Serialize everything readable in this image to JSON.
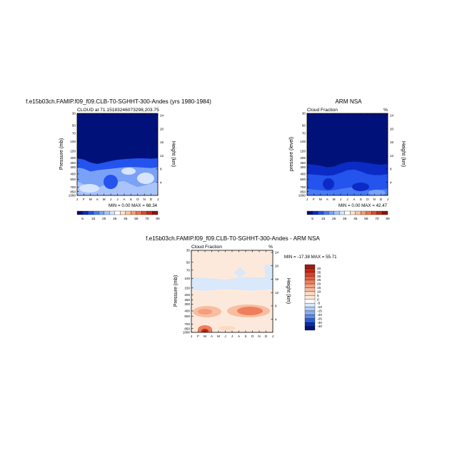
{
  "figure": {
    "title_left": "f.e15b03ch.FAMIP.f09_f09.CLB-T0-SGHHT-300-Andes (yrs 1980-1984)",
    "title_right": "ARM NSA",
    "title_diff": "f.e15b03ch.FAMIP.f09_f09.CLB-T0-SGHHT-300-Andes - ARM NSA"
  },
  "chart_data": [
    {
      "id": "model",
      "type": "heatmap",
      "subtitle_left": "CLOUD at 71.15183246073298,203.75",
      "subtitle_right": "",
      "percent_mark": "",
      "ylabel": "Pressure (mb)",
      "ylabel_right": "Height (km)",
      "stats": "MIN =   0.00 MAX =   68.34",
      "x_ticks": [
        "J",
        "F",
        "M",
        "A",
        "M",
        "J",
        "J",
        "A",
        "S",
        "O",
        "N",
        "D",
        "J"
      ],
      "y_ticks": [
        "30",
        "50",
        "70",
        "100",
        "150",
        "200",
        "250",
        "300",
        "400",
        "500",
        "700",
        "850",
        "1000"
      ],
      "y_ticks_right": [
        "24",
        "20",
        "16",
        "12",
        "8",
        "4"
      ],
      "ylim": [
        30,
        1000
      ],
      "colorbar": {
        "orientation": "horizontal",
        "labels": [
          "5",
          "15",
          "25",
          "35",
          "45",
          "55",
          "70",
          "90"
        ],
        "colors": [
          "#00127a",
          "#0b2bc4",
          "#2453ee",
          "#4a7bf5",
          "#7aa1f8",
          "#a8c4fb",
          "#d6e4fd",
          "#ffffff",
          "#fde4cf",
          "#fbc5a0",
          "#f79e73",
          "#ef744a",
          "#e04b2b",
          "#c22a16",
          "#95110a"
        ]
      },
      "series": [
        {
          "months": [
            1,
            2,
            3,
            4,
            5,
            6,
            7,
            8,
            9,
            10,
            11,
            12,
            13
          ],
          "pressure_top": [
            205,
            215,
            245,
            260,
            245,
            230,
            218,
            212,
            208,
            205,
            206,
            208,
            205
          ]
        },
        {
          "months": [
            1,
            2,
            3,
            4,
            5,
            6,
            7,
            8,
            9,
            10,
            11,
            12,
            13
          ],
          "pressure_top": [
            300,
            320,
            360,
            340,
            330,
            320,
            310,
            300,
            295,
            300,
            305,
            310,
            300
          ]
        },
        {
          "months": [
            1,
            2,
            3,
            4,
            5,
            6,
            7,
            8,
            9,
            10,
            11,
            12,
            13
          ],
          "pressure_top": [
            550,
            620,
            700,
            720,
            650,
            600,
            560,
            540,
            620,
            700,
            650,
            600,
            550
          ]
        }
      ]
    },
    {
      "id": "obs",
      "type": "heatmap",
      "subtitle_left": "Cloud Fraction",
      "subtitle_right": "",
      "percent_mark": "%",
      "ylabel": "pressure (level)",
      "ylabel_right": "Height (km)",
      "stats": "MIN =   0.00 MAX =   42.47",
      "x_ticks": [
        "J",
        "F",
        "M",
        "A",
        "M",
        "J",
        "J",
        "A",
        "S",
        "O",
        "N",
        "D",
        "J"
      ],
      "y_ticks": [
        "30",
        "50",
        "70",
        "100",
        "150",
        "200",
        "250",
        "300",
        "400",
        "500",
        "700",
        "850",
        "1000"
      ],
      "y_ticks_right": [
        "24",
        "20",
        "16",
        "12",
        "8",
        "4"
      ],
      "ylim": [
        30,
        1000
      ],
      "colorbar": {
        "orientation": "horizontal",
        "labels": [
          "5",
          "15",
          "25",
          "35",
          "45",
          "55",
          "70",
          "90"
        ],
        "colors": [
          "#00127a",
          "#0b2bc4",
          "#2453ee",
          "#4a7bf5",
          "#7aa1f8",
          "#a8c4fb",
          "#d6e4fd",
          "#ffffff",
          "#fde4cf",
          "#fbc5a0",
          "#f79e73",
          "#ef744a",
          "#e04b2b",
          "#c22a16",
          "#95110a"
        ]
      },
      "series": [
        {
          "months": [
            1,
            2,
            3,
            4,
            5,
            6,
            7,
            8,
            9,
            10,
            11,
            12,
            13
          ],
          "pressure_top": [
            260,
            270,
            280,
            300,
            290,
            260,
            240,
            235,
            240,
            250,
            262,
            270,
            260
          ]
        },
        {
          "months": [
            1,
            2,
            3,
            4,
            5,
            6,
            7,
            8,
            9,
            10,
            11,
            12,
            13
          ],
          "pressure_top": [
            400,
            410,
            420,
            430,
            420,
            380,
            340,
            330,
            360,
            400,
            420,
            420,
            400
          ]
        },
        {
          "months": [
            1,
            2,
            3,
            4,
            5,
            6,
            7,
            8,
            9,
            10,
            11,
            12,
            13
          ],
          "pressure_top": [
            750,
            780,
            800,
            820,
            800,
            760,
            720,
            700,
            740,
            800,
            820,
            780,
            750
          ]
        }
      ]
    },
    {
      "id": "diff",
      "type": "heatmap",
      "subtitle_left": "Cloud Fraction",
      "subtitle_right": "",
      "percent_mark": "%",
      "ylabel": "Pressure (mb)",
      "ylabel_right": "Height (km)",
      "stats": "MIN = -17.38 MAX =   55.71",
      "x_ticks": [
        "J",
        "F",
        "M",
        "A",
        "M",
        "J",
        "J",
        "A",
        "S",
        "O",
        "N",
        "D",
        "J"
      ],
      "y_ticks": [
        "30",
        "50",
        "70",
        "100",
        "150",
        "200",
        "250",
        "300",
        "400",
        "500",
        "700",
        "850",
        "1000"
      ],
      "y_ticks_right": [
        "24",
        "20",
        "16",
        "12",
        "8",
        "4"
      ],
      "ylim": [
        30,
        1000
      ],
      "colorbar": {
        "orientation": "vertical",
        "labels": [
          "40",
          "35",
          "30",
          "25",
          "20",
          "15",
          "10",
          "5",
          "0",
          "-5",
          "-10",
          "-15",
          "-20",
          "-25",
          "-30",
          "-40"
        ],
        "colors": [
          "#a5190f",
          "#c22a16",
          "#d8402a",
          "#e65e40",
          "#ef7e5c",
          "#f59e7e",
          "#f9bda0",
          "#fcd9c2",
          "#fde9dc",
          "#ffffff",
          "#d9e8fb",
          "#b4ccf7",
          "#8aaef2",
          "#5f8ce9",
          "#2b5ad8",
          "#0b2bb0",
          "#00127a"
        ]
      },
      "series": [
        {
          "months": [
            1,
            2,
            3,
            4,
            5,
            6,
            7,
            8,
            9,
            10,
            11,
            12,
            13
          ],
          "pressure_top": [
            95,
            95,
            98,
            100,
            102,
            105,
            100,
            96,
            94,
            95,
            96,
            95,
            95
          ]
        },
        {
          "months": [
            1,
            2,
            3,
            4,
            5,
            6,
            7,
            8,
            9,
            10,
            11,
            12,
            13
          ],
          "pressure_top": [
            160,
            165,
            170,
            165,
            160,
            158,
            160,
            162,
            165,
            168,
            165,
            160,
            160
          ]
        }
      ]
    }
  ]
}
